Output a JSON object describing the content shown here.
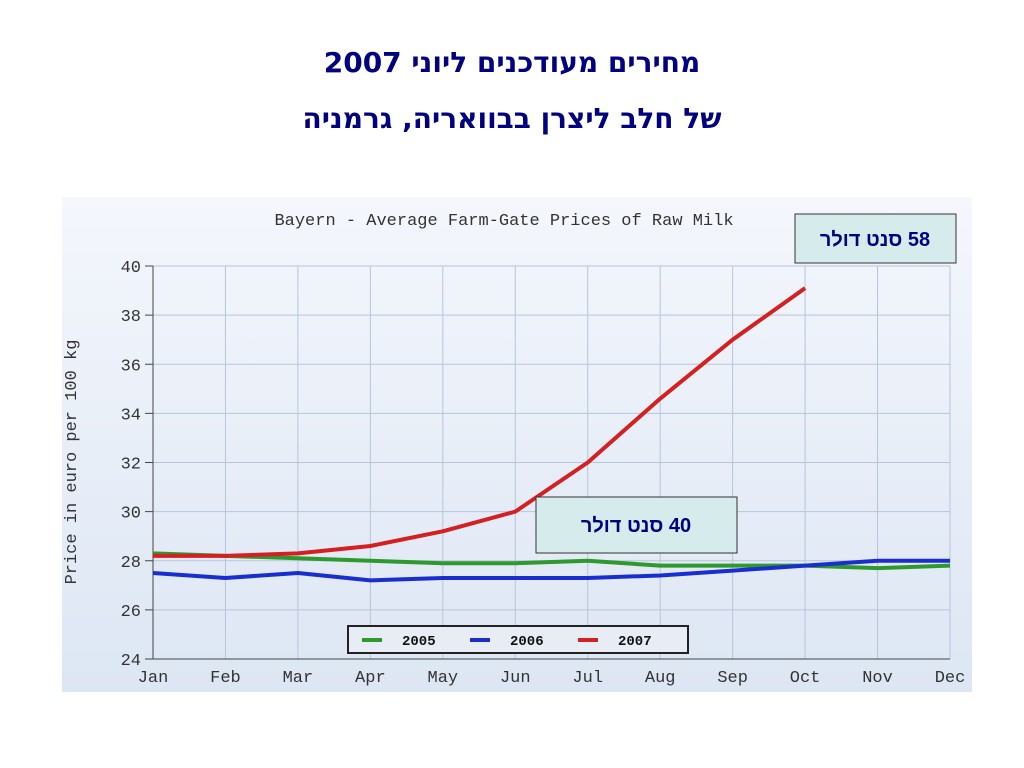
{
  "slide": {
    "title_lines": [
      "מחירים מעודכנים ליוני 2007",
      "של חלב ליצרן בבוואריה, גרמניה"
    ]
  },
  "chart_data": {
    "type": "line",
    "title": "Bayern - Average Farm-Gate Prices of Raw Milk",
    "y_label": "Price in euro per 100 kg",
    "categories": [
      "Jan",
      "Feb",
      "Mar",
      "Apr",
      "May",
      "Jun",
      "Jul",
      "Aug",
      "Sep",
      "Oct",
      "Nov",
      "Dec"
    ],
    "series": [
      {
        "name": "2005",
        "color": "#2e9a2e",
        "values": [
          28.3,
          28.2,
          28.1,
          28.0,
          27.9,
          27.9,
          28.0,
          27.8,
          27.8,
          27.8,
          27.7,
          27.8
        ]
      },
      {
        "name": "2006",
        "color": "#1a2ed0",
        "values": [
          27.5,
          27.3,
          27.5,
          27.2,
          27.3,
          27.3,
          27.3,
          27.4,
          27.6,
          27.8,
          28.0,
          28.0
        ]
      },
      {
        "name": "2007",
        "color": "#d42020",
        "values": [
          28.2,
          28.2,
          28.3,
          28.6,
          29.2,
          30.0,
          32.0,
          34.6,
          37.0,
          39.1,
          null,
          null
        ]
      }
    ],
    "ylim": [
      24,
      40
    ],
    "yticks": [
      24,
      26,
      28,
      30,
      32,
      34,
      36,
      38,
      40
    ],
    "grid": true,
    "annotations": [
      "58 סנט דולר",
      "40 סנט דולר"
    ]
  }
}
